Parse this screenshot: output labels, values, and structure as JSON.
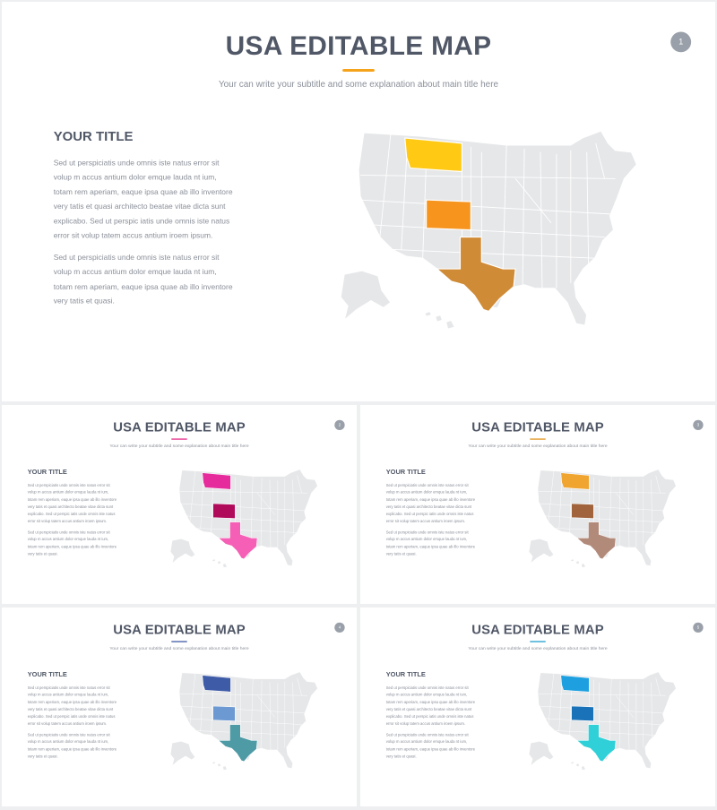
{
  "slides": [
    {
      "title": "USA EDITABLE MAP",
      "subtitle": "Your can write your subtitle and some explanation about main title here",
      "page_number": "1",
      "left_title": "YOUR TITLE",
      "paragraph_1": "Sed ut perspiciatis unde omnis iste natus error sit volup m accus antium dolor emque lauda nt ium, totam rem aperiam, eaque ipsa quae ab illo inventore very tatis et quasi architecto beatae vitae dicta sunt explicabo.  Sed ut perspic iatis unde omnis iste natus error sit volup tatem accus antium iroem ipsum.",
      "paragraph_2": "Sed ut perspiciatis unde omnis iste natus error sit volup m accus antium dolor emque lauda nt ium, totam rem aperiam, eaque ipsa quae ab illo inventore very tatis et quasi.",
      "colors": {
        "accent": "#f5a31a",
        "montana": "#ffc914",
        "colorado": "#f6941e",
        "texas": "#d08b37"
      }
    },
    {
      "title": "USA EDITABLE MAP",
      "subtitle": "Your can write your subtitle and some explanation about main title here",
      "page_number": "2",
      "left_title": "YOUR TITLE",
      "paragraph_1": "Sed ut perspiciatis unde omnis iste natus error sit volup m accus antium dolor emque lauda nt ium, totam rem aperiam, eaque ipsa quae ab illo inventore very tatis et quasi architecto beatae vitae dicta sunt explicabo.  Sed ut perspic iatis unde omnis iste natus error sit volup tatem accus antium iroem ipsum.",
      "paragraph_2": "Sed ut perspiciatis unde omnis iste natus error sit volup m accus antium dolor emque lauda nt ium, totam rem aperiam, eaque ipsa quae ab illo inventore very tatis et quasi.",
      "colors": {
        "accent": "#e6378f",
        "montana": "#e62c9c",
        "colorado": "#b00a5a",
        "texas": "#f55fb5"
      }
    },
    {
      "title": "USA EDITABLE MAP",
      "subtitle": "Your can write your subtitle and some explanation about main title here",
      "page_number": "3",
      "left_title": "YOUR TITLE",
      "paragraph_1": "Sed ut perspiciatis unde omnis iste natus error sit volup m accus antium dolor emque lauda nt ium, totam rem aperiam, eaque ipsa quae ab illo inventore very tatis et quasi architecto beatae vitae dicta sunt explicabo.  Sed ut perspic iatis unde omnis iste natus error sit volup tatem accus antium iroem ipsum.",
      "paragraph_2": "Sed ut perspiciatis unde omnis iste natus error sit volup m accus antium dolor emque lauda nt ium, totam rem aperiam, eaque ipsa quae ab illo inventore very tatis et quasi.",
      "colors": {
        "accent": "#e49a2a",
        "montana": "#f0a531",
        "colorado": "#a0633c",
        "texas": "#b28a7a"
      }
    },
    {
      "title": "USA EDITABLE MAP",
      "subtitle": "Your can write your subtitle and some explanation about main title here",
      "page_number": "4",
      "left_title": "YOUR TITLE",
      "paragraph_1": "Sed ut perspiciatis unde omnis iste natus error sit volup m accus antium dolor emque lauda nt ium, totam rem aperiam, eaque ipsa quae ab illo inventore very tatis et quasi architecto beatae vitae dicta sunt explicabo.  Sed ut perspic iatis unde omnis iste natus error sit volup tatem accus antium iroem ipsum.",
      "paragraph_2": "Sed ut perspiciatis unde omnis iste natus error sit volup m accus antium dolor emque lauda nt ium, totam rem aperiam, eaque ipsa quae ab illo inventore very tatis et quasi.",
      "colors": {
        "accent": "#4a62a8",
        "montana": "#3e5ba8",
        "colorado": "#6c99d2",
        "texas": "#4e9aa5"
      }
    },
    {
      "title": "USA EDITABLE MAP",
      "subtitle": "Your can write your subtitle and some explanation about main title here",
      "page_number": "5",
      "left_title": "YOUR TITLE",
      "paragraph_1": "Sed ut perspiciatis unde omnis iste natus error sit volup m accus antium dolor emque lauda nt ium, totam rem aperiam, eaque ipsa quae ab illo inventore very tatis et quasi architecto beatae vitae dicta sunt explicabo.  Sed ut perspic iatis unde omnis iste natus error sit volup tatem accus antium iroem ipsum.",
      "paragraph_2": "Sed ut perspiciatis unde omnis iste natus error sit volup m accus antium dolor emque lauda nt ium, totam rem aperiam, eaque ipsa quae ab illo inventore very tatis et quasi.",
      "colors": {
        "accent": "#2aa5d0",
        "montana": "#1ea0e0",
        "colorado": "#1a72b8",
        "texas": "#2fd0d8"
      }
    }
  ],
  "map_base_color": "#e6e7e9"
}
